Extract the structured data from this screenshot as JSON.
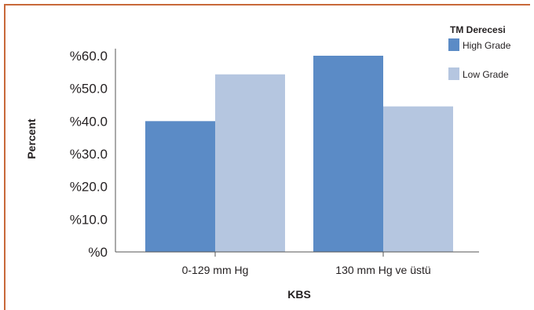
{
  "chart_data": {
    "type": "bar",
    "categories": [
      "0-129 mm Hg",
      "130 mm Hg ve üstü"
    ],
    "series": [
      {
        "name": "High Grade",
        "values": [
          40,
          60
        ],
        "color": "#5b8bc6"
      },
      {
        "name": "Low Grade",
        "values": [
          54.3,
          44.5
        ],
        "color": "#b5c6e0"
      }
    ],
    "ylim": [
      0,
      60
    ],
    "yticks": [
      {
        "value": 0,
        "label": "%0"
      },
      {
        "value": 10,
        "label": "%10.0"
      },
      {
        "value": 20,
        "label": "%20.0"
      },
      {
        "value": 30,
        "label": "%30.0"
      },
      {
        "value": 40,
        "label": "%40.0"
      },
      {
        "value": 50,
        "label": "%50.0"
      },
      {
        "value": 60,
        "label": "%60.0"
      }
    ],
    "xlabel": "KBS",
    "ylabel": "Percent",
    "legend": {
      "title": "TM Derecesi",
      "position": "top-right"
    },
    "grid": false
  },
  "colors": {
    "frame": "#c8693a",
    "axis": "#555555",
    "text": "#231f20"
  }
}
